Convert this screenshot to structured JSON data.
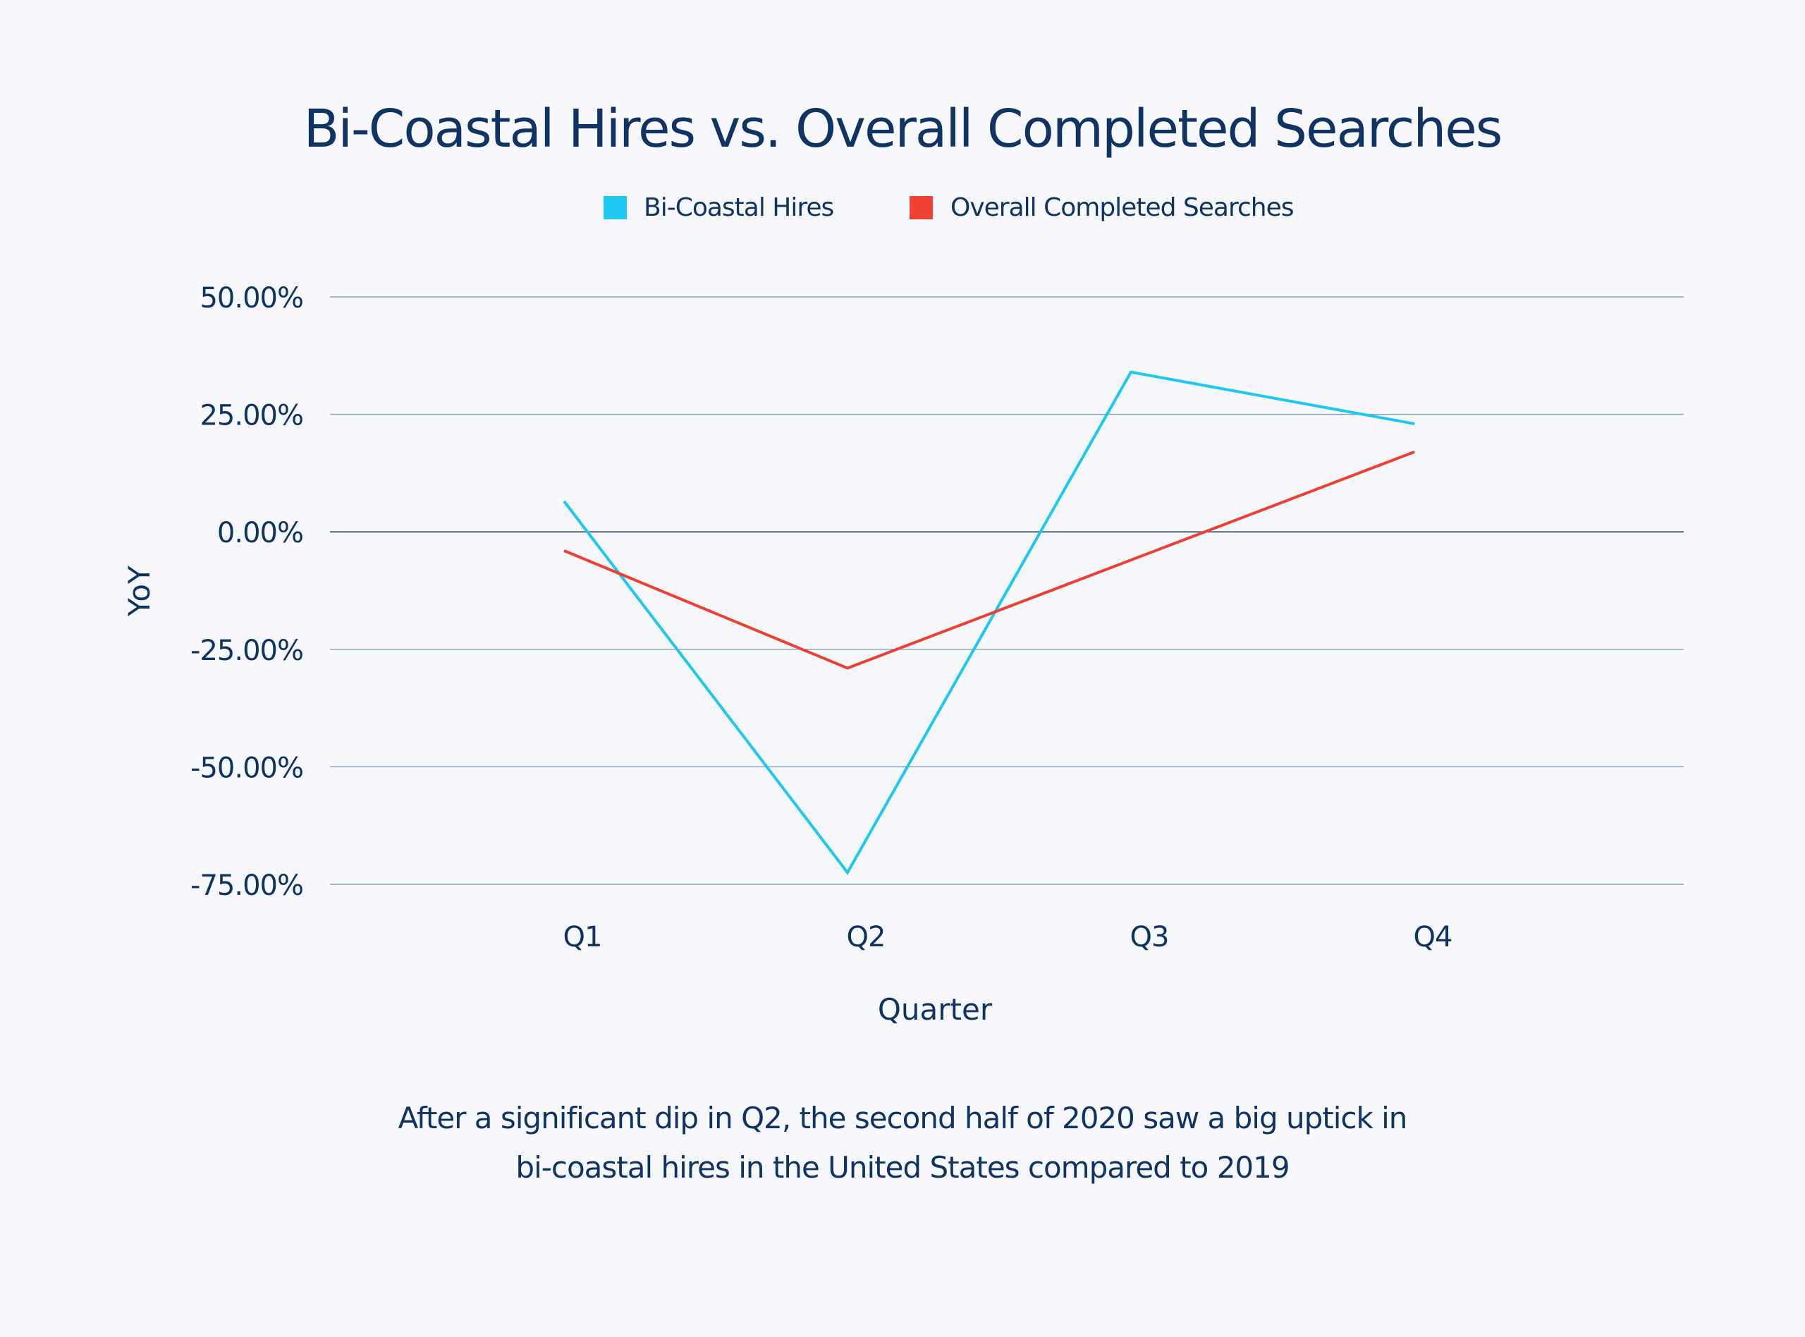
{
  "chart_data": {
    "type": "line",
    "title": "Bi-Coastal Hires vs. Overall Completed Searches",
    "xlabel": "Quarter",
    "ylabel": "YoY",
    "categories": [
      "Q1",
      "Q2",
      "Q3",
      "Q4"
    ],
    "y_ticks": [
      "50.00%",
      "25.00%",
      "0.00%",
      "-25.00%",
      "-50.00%",
      "-75.00%"
    ],
    "y_tick_values": [
      50,
      25,
      0,
      -25,
      -50,
      -75
    ],
    "ylim": [
      -75,
      50
    ],
    "grid": true,
    "legend_position": "top-center",
    "series": [
      {
        "name": "Bi-Coastal Hires",
        "color": "#1ec8f0",
        "values": [
          6.5,
          -72.5,
          34,
          23
        ]
      },
      {
        "name": "Overall Completed Searches",
        "color": "#ee4034",
        "values": [
          -4,
          -29,
          -6,
          17
        ]
      }
    ],
    "caption": [
      "After a significant dip in Q2, the second half of 2020 saw a big uptick in",
      "bi-coastal hires in the United States compared to 2019"
    ]
  },
  "colors": {
    "background": "#f7f8fb",
    "text": "#0f3463",
    "gridline": "#8aa6b8",
    "zero_line": "#4d6c84"
  }
}
